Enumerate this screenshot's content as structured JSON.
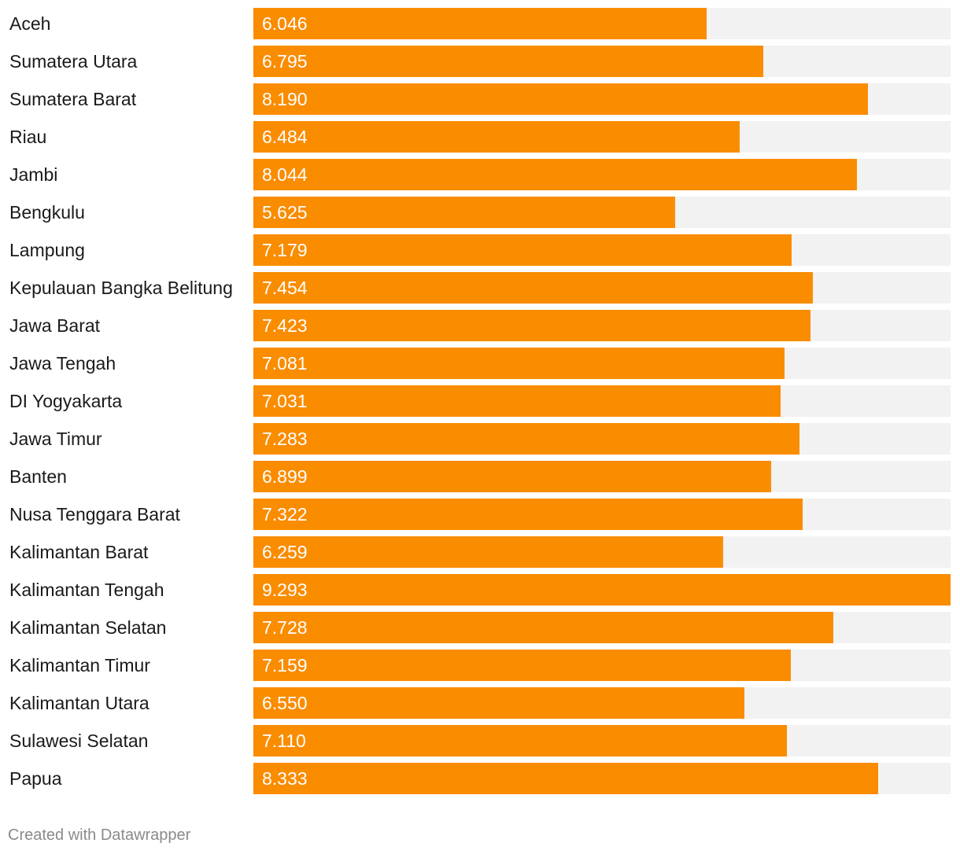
{
  "chart_data": {
    "type": "bar",
    "orientation": "horizontal",
    "title": "",
    "xlabel": "",
    "ylabel": "",
    "xlim": [
      0,
      9.293
    ],
    "grid": false,
    "legend": "none",
    "bar_color": "#fa8c00",
    "track_color": "#f2f2f2",
    "categories": [
      "Aceh",
      "Sumatera Utara",
      "Sumatera Barat",
      "Riau",
      "Jambi",
      "Bengkulu",
      "Lampung",
      "Kepulauan Bangka Belitung",
      "Jawa Barat",
      "Jawa Tengah",
      "DI Yogyakarta",
      "Jawa Timur",
      "Banten",
      "Nusa Tenggara Barat",
      "Kalimantan Barat",
      "Kalimantan Tengah",
      "Kalimantan Selatan",
      "Kalimantan Timur",
      "Kalimantan Utara",
      "Sulawesi Selatan",
      "Papua"
    ],
    "values": [
      6.046,
      6.795,
      8.19,
      6.484,
      8.044,
      5.625,
      7.179,
      7.454,
      7.423,
      7.081,
      7.031,
      7.283,
      6.899,
      7.322,
      6.259,
      9.293,
      7.728,
      7.159,
      6.55,
      7.11,
      8.333
    ],
    "value_labels": [
      "6.046",
      "6.795",
      "8.190",
      "6.484",
      "8.044",
      "5.625",
      "7.179",
      "7.454",
      "7.423",
      "7.081",
      "7.031",
      "7.283",
      "6.899",
      "7.322",
      "6.259",
      "9.293",
      "7.728",
      "7.159",
      "6.550",
      "7.110",
      "8.333"
    ]
  },
  "footer": {
    "credit": "Created with Datawrapper"
  }
}
